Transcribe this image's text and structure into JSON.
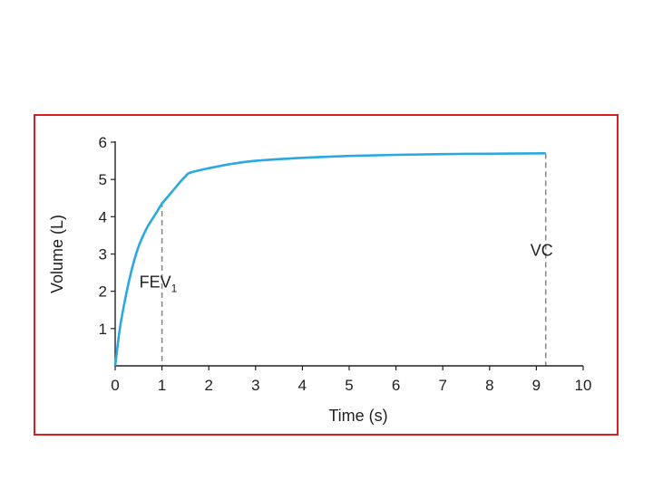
{
  "chart_data": {
    "type": "line",
    "title": "",
    "xlabel": "Time (s)",
    "ylabel": "Volume (L)",
    "xlim": [
      0,
      10
    ],
    "ylim": [
      0,
      6
    ],
    "xticks": [
      0,
      1,
      2,
      3,
      4,
      5,
      6,
      7,
      8,
      9,
      10
    ],
    "yticks": [
      1,
      2,
      3,
      4,
      5,
      6
    ],
    "grid": false,
    "colors": {
      "frame": "#d42020",
      "line": "#29a9df",
      "marker_line": "#888888",
      "axis": "#222222"
    },
    "series": [
      {
        "x": [
          0,
          0.1,
          0.2,
          0.3,
          0.4,
          0.5,
          0.6,
          0.7,
          0.8,
          0.9,
          1.0,
          1.1,
          1.2,
          1.3,
          1.4,
          1.5,
          1.6,
          2.0,
          2.5,
          3.0,
          4.0,
          5.0,
          6.0,
          7.0,
          8.0,
          9.2
        ],
        "y": [
          0,
          1.0,
          1.7,
          2.3,
          2.8,
          3.2,
          3.5,
          3.75,
          3.95,
          4.15,
          4.35,
          4.5,
          4.65,
          4.8,
          4.95,
          5.08,
          5.18,
          5.3,
          5.42,
          5.5,
          5.58,
          5.63,
          5.66,
          5.68,
          5.69,
          5.7
        ]
      }
    ],
    "annotations": [
      {
        "text": "FEV",
        "subscript": "1",
        "x": 1,
        "y": 4.4
      },
      {
        "text": "VC",
        "x": 9.2,
        "y": 5.7
      }
    ]
  }
}
